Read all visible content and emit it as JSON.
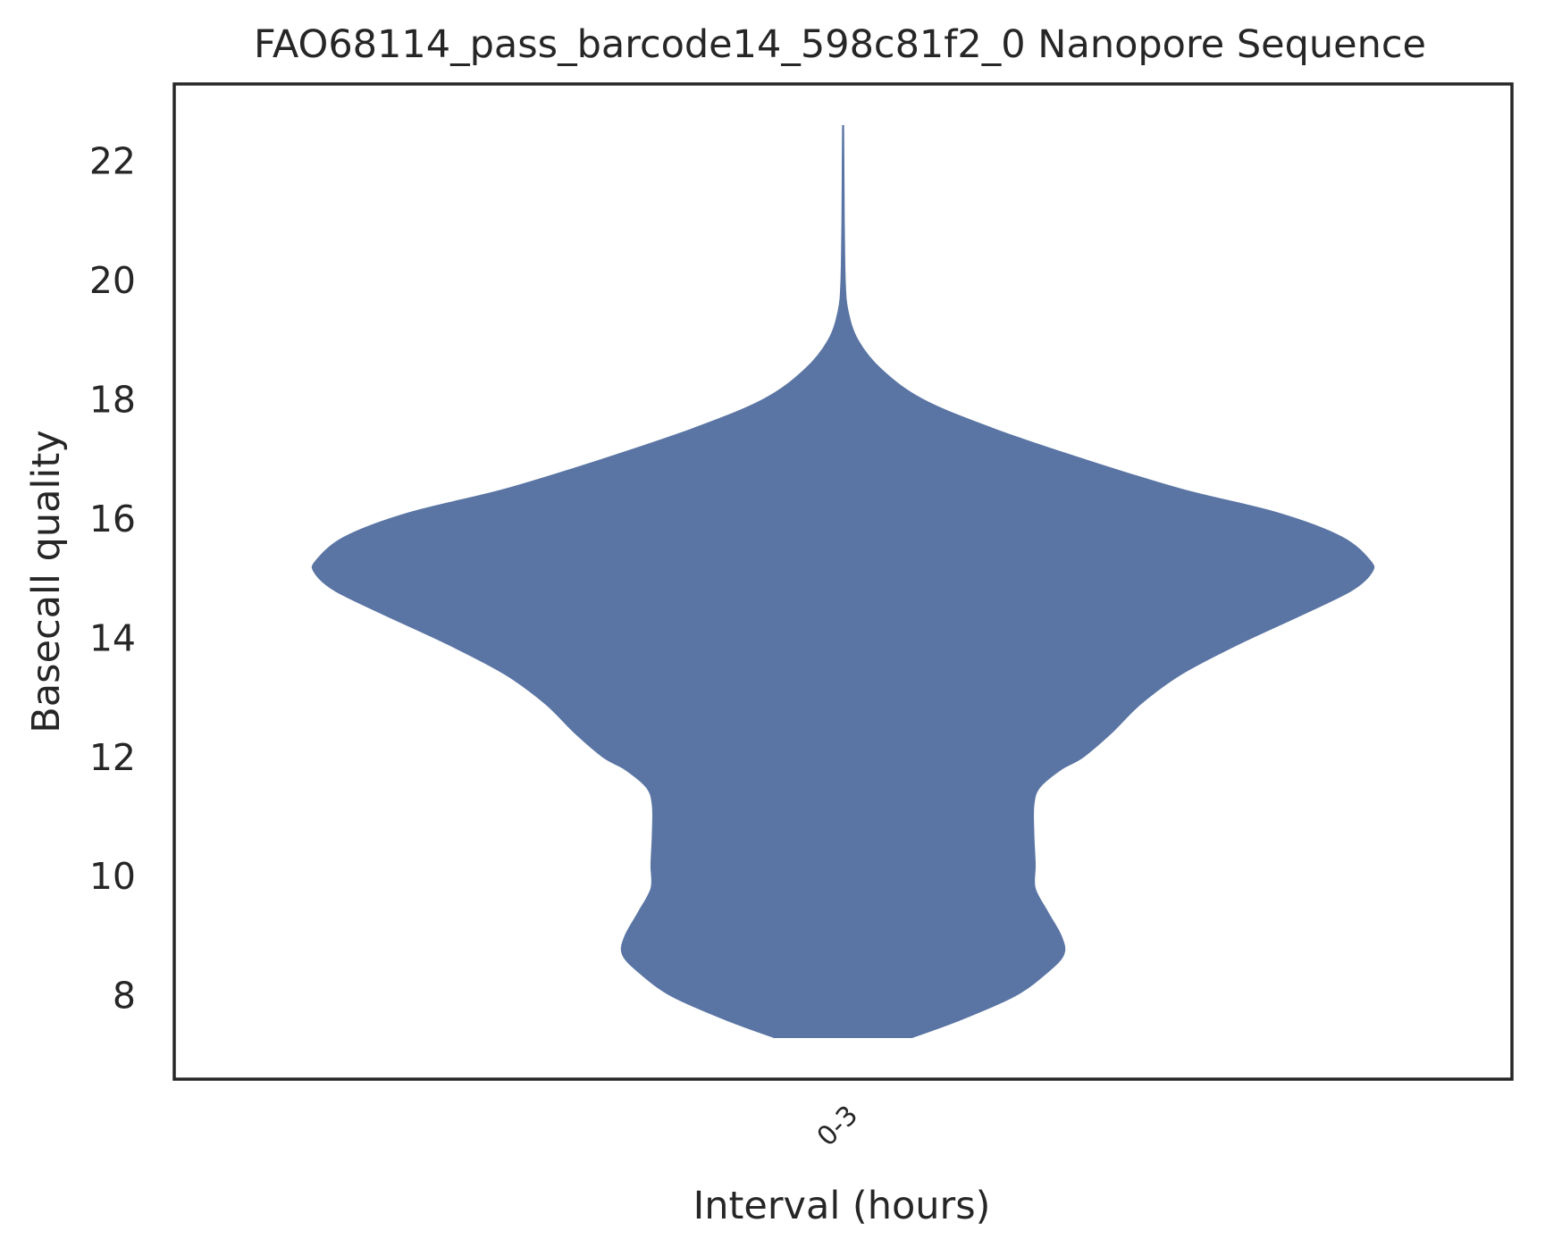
{
  "chart_data": {
    "type": "violin",
    "title": "FAO68114_pass_barcode14_598c81f2_0 Nanopore Sequence",
    "xlabel": "Interval (hours)",
    "ylabel": "Basecall quality",
    "categories": [
      "0-3"
    ],
    "ylim": [
      6.6,
      23.3
    ],
    "yticks": [
      8,
      10,
      12,
      14,
      16,
      18,
      20,
      22
    ],
    "grid": false,
    "legend": "none",
    "fill_color": "#5a75a4",
    "violins": [
      {
        "category": "0-3",
        "density_profile": [
          {
            "y": 7.3,
            "w": 0.103
          },
          {
            "y": 7.6,
            "w": 0.176
          },
          {
            "y": 8.0,
            "w": 0.257
          },
          {
            "y": 8.4,
            "w": 0.306
          },
          {
            "y": 8.7,
            "w": 0.33
          },
          {
            "y": 9.0,
            "w": 0.326
          },
          {
            "y": 9.4,
            "w": 0.306
          },
          {
            "y": 9.8,
            "w": 0.287
          },
          {
            "y": 10.2,
            "w": 0.287
          },
          {
            "y": 10.7,
            "w": 0.285
          },
          {
            "y": 11.2,
            "w": 0.285
          },
          {
            "y": 11.5,
            "w": 0.294
          },
          {
            "y": 11.8,
            "w": 0.326
          },
          {
            "y": 12.0,
            "w": 0.358
          },
          {
            "y": 12.4,
            "w": 0.4
          },
          {
            "y": 12.9,
            "w": 0.445
          },
          {
            "y": 13.4,
            "w": 0.506
          },
          {
            "y": 13.9,
            "w": 0.591
          },
          {
            "y": 14.4,
            "w": 0.687
          },
          {
            "y": 14.8,
            "w": 0.76
          },
          {
            "y": 15.1,
            "w": 0.79
          },
          {
            "y": 15.3,
            "w": 0.788
          },
          {
            "y": 15.7,
            "w": 0.745
          },
          {
            "y": 16.1,
            "w": 0.65
          },
          {
            "y": 16.5,
            "w": 0.505
          },
          {
            "y": 17.0,
            "w": 0.36
          },
          {
            "y": 17.5,
            "w": 0.228
          },
          {
            "y": 18.0,
            "w": 0.12
          },
          {
            "y": 18.5,
            "w": 0.058
          },
          {
            "y": 19.0,
            "w": 0.022
          },
          {
            "y": 19.5,
            "w": 0.007
          },
          {
            "y": 20.0,
            "w": 0.003
          },
          {
            "y": 21.0,
            "w": 0.0015
          },
          {
            "y": 22.0,
            "w": 0.001
          },
          {
            "y": 22.6,
            "w": 0.0005
          }
        ]
      }
    ]
  }
}
